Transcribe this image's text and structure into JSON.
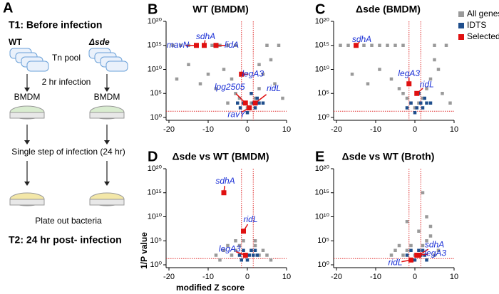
{
  "schematic": {
    "panel": "A",
    "t1": "T1: Before infection",
    "wt": "WT",
    "sde": "Δsde",
    "pool": "Tn pool",
    "infection": "2 hr infection",
    "host_left": "BMDM",
    "host_right": "BMDM",
    "single_step": "Single step of infection (24 hr)",
    "plate": "Plate out bacteria",
    "t2": "T2: 24 hr post- infection"
  },
  "chart_data": [
    {
      "type": "scatter",
      "panel": "B",
      "title": "WT (BMDM)",
      "xlim": [
        -20,
        10
      ],
      "xticks": [
        -20,
        -10,
        0,
        10
      ],
      "ylim": [
        1,
        1e+20
      ],
      "yticks": [
        {
          "value": 1,
          "label": "10⁰"
        },
        {
          "value": 100000,
          "label": "10⁵"
        },
        {
          "value": 10000000000,
          "label": "10¹⁰"
        },
        {
          "value": 1000000000000000.0,
          "label": "10¹⁵"
        },
        {
          "value": 1e+20,
          "label": "10²⁰"
        }
      ],
      "log_y": true,
      "thresholds": {
        "x": [
          -1.5,
          1.5
        ],
        "y": 20,
        "color": "#e03030"
      },
      "series": [
        {
          "color": "#9a9a9a",
          "x": [
            -19,
            -17,
            -15,
            -13,
            -9,
            -7,
            -5,
            -3,
            -18,
            -15,
            -12,
            -10,
            -8,
            -6,
            -4,
            -3,
            -2,
            -1,
            0,
            1,
            2,
            3,
            4,
            5,
            6,
            7,
            8,
            3,
            9,
            -5
          ],
          "values": [
            1000000000000000.0,
            1000000000000000.0,
            1000000000000000.0,
            1000000000000000.0,
            1000000000000000.0,
            1000000000000000.0,
            1000000000000000.0,
            1000000000000000.0,
            100000000.0,
            100000000000.0,
            10000000.0,
            1000000000.0,
            1000000.0,
            10000000000.0,
            100000000.0,
            100000,
            10000,
            1000,
            100,
            1000,
            10000,
            1000000,
            1000000000.0,
            1000000000000000.0,
            1000000000000.0,
            10000000,
            1000000000000000.0,
            100000000000.0,
            10000,
            1000
          ]
        },
        {
          "color": "#1f4e8c",
          "x": [
            -1.8,
            -1,
            0,
            0.5,
            1.5,
            2,
            2.5,
            3,
            -2.5,
            1,
            4
          ],
          "values": [
            100,
            1000,
            10,
            100,
            1000,
            100,
            10000,
            1000,
            1000,
            100000,
            1000
          ]
        },
        {
          "color": "#e01010",
          "x": [
            -11,
            -13,
            -8,
            -1.5,
            -0.5,
            0.5,
            2
          ],
          "values": [
            1000000000000000.0,
            1000000000000000.0,
            1000000000000000.0,
            1000000000.0,
            1000,
            100,
            1000
          ],
          "labels": [
            "sdhA",
            "mavN",
            "lidA",
            "legA3",
            "lpg2505",
            "ravY",
            "ridL"
          ]
        }
      ]
    },
    {
      "type": "scatter",
      "panel": "C",
      "title": "Δsde (BMDM)",
      "xlim": [
        -20,
        10
      ],
      "xticks": [
        -20,
        -10,
        0,
        10
      ],
      "ylim": [
        1,
        1e+20
      ],
      "yticks": [
        {
          "value": 1,
          "label": "10⁰"
        },
        {
          "value": 100000,
          "label": "10⁵"
        },
        {
          "value": 10000000000,
          "label": "10¹⁰"
        },
        {
          "value": 1000000000000000.0,
          "label": "10¹⁵"
        },
        {
          "value": 1e+20,
          "label": "10²⁰"
        }
      ],
      "log_y": true,
      "thresholds": {
        "x": [
          -1.5,
          1.5
        ],
        "y": 20,
        "color": "#e03030"
      },
      "legend": "top-right-outside",
      "series": [
        {
          "name": "All genes",
          "color": "#9a9a9a",
          "x": [
            -19,
            -17,
            -13,
            -11,
            -9,
            -7,
            -5,
            -3,
            -16,
            -12,
            -9,
            -6,
            -4,
            -3,
            -2,
            -1,
            0,
            1,
            2,
            3,
            4,
            5,
            6,
            7,
            8,
            9,
            5
          ],
          "values": [
            1000000000000000.0,
            1000000000000000.0,
            1000000000000000.0,
            1000000000000000.0,
            1000000000000000.0,
            1000000000000000.0,
            1000000000000000.0,
            1000000000000000.0,
            1000000000.0,
            10000000.0,
            10000000000.0,
            100000000.0,
            1000000.0,
            100000,
            10000,
            1000,
            100,
            1000,
            10000,
            1000000,
            100000000.0,
            1000000000000000.0,
            10000000000.0,
            100000,
            1000000000000000.0,
            1000,
            1000000000000.0
          ]
        },
        {
          "name": "IDTS",
          "color": "#1f4e8c",
          "x": [
            -2,
            -1,
            0,
            0.5,
            1.5,
            2,
            2.5,
            3,
            4,
            1
          ],
          "values": [
            100,
            1000,
            10,
            100,
            1000,
            100,
            10000,
            1000,
            1000,
            100000
          ]
        },
        {
          "name": "Selected IDTS",
          "color": "#e01010",
          "x": [
            -15,
            -1.5,
            0.5
          ],
          "values": [
            1000000000000000.0,
            10000000,
            100000
          ],
          "labels": [
            "sdhA",
            "legA3",
            "ridL"
          ]
        }
      ]
    },
    {
      "type": "scatter",
      "panel": "D",
      "title": "Δsde vs WT (BMDM)",
      "xlim": [
        -20,
        10
      ],
      "xticks": [
        -20,
        -10,
        0,
        10
      ],
      "ylim": [
        1,
        1e+20
      ],
      "yticks": [
        {
          "value": 1,
          "label": "10⁰"
        },
        {
          "value": 100000,
          "label": "10⁵"
        },
        {
          "value": 10000000000,
          "label": "10¹⁰"
        },
        {
          "value": 1000000000000000.0,
          "label": "10¹⁵"
        },
        {
          "value": 1e+20,
          "label": "10²⁰"
        }
      ],
      "log_y": true,
      "xlabel": "modified Z score",
      "ylabel": "1/P value",
      "thresholds": {
        "x": [
          -1.5,
          1.5
        ],
        "y": 20,
        "color": "#e03030"
      },
      "series": [
        {
          "color": "#9a9a9a",
          "x": [
            -8,
            -6,
            -5,
            -4,
            -3,
            -2,
            -1,
            0,
            1,
            2,
            3,
            4,
            5,
            -3,
            2,
            6,
            -7
          ],
          "values": [
            100,
            1000,
            10000,
            100,
            1000,
            10000,
            100000,
            100,
            1000,
            10000,
            100,
            1000,
            100,
            100000,
            100000,
            10,
            10
          ]
        },
        {
          "color": "#1f4e8c",
          "x": [
            -2,
            -1,
            0,
            0.5,
            1,
            1.5,
            2,
            2.5,
            -1.5
          ],
          "values": [
            100,
            1000,
            10,
            100,
            1000,
            100,
            1000,
            100,
            10
          ]
        },
        {
          "color": "#e01010",
          "x": [
            -6,
            -1,
            -0.5
          ],
          "values": [
            1000000000000000.0,
            10000000,
            100
          ],
          "labels": [
            "sdhA",
            "ridL",
            "legA3"
          ]
        }
      ]
    },
    {
      "type": "scatter",
      "panel": "E",
      "title": "Δsde vs WT (Broth)",
      "xlim": [
        -20,
        10
      ],
      "xticks": [
        -20,
        -10,
        0,
        10
      ],
      "ylim": [
        1,
        1e+20
      ],
      "yticks": [
        {
          "value": 1,
          "label": "10⁰"
        },
        {
          "value": 100000,
          "label": "10⁵"
        },
        {
          "value": 10000000000,
          "label": "10¹⁰"
        },
        {
          "value": 1000000000000000.0,
          "label": "10¹⁵"
        },
        {
          "value": 1e+20,
          "label": "10²⁰"
        }
      ],
      "log_y": true,
      "thresholds": {
        "x": [
          -1.5,
          1.5
        ],
        "y": 20,
        "color": "#e03030"
      },
      "series": [
        {
          "color": "#9a9a9a",
          "x": [
            -6,
            -5,
            -4,
            -3,
            -2,
            -1,
            0,
            1,
            2,
            3,
            4,
            5,
            2,
            3,
            6,
            -2,
            1,
            4
          ],
          "values": [
            100,
            1000,
            10000,
            100,
            1000,
            10000,
            100,
            1000,
            10000,
            100000,
            1000000,
            100,
            1000000000000000.0,
            10000000000.0,
            1000,
            1000000000.0,
            10000000,
            100000000
          ]
        },
        {
          "color": "#1f4e8c",
          "x": [
            -2,
            -1,
            0,
            0.5,
            1,
            1.5,
            2,
            2.5,
            3
          ],
          "values": [
            100,
            1000,
            10,
            100,
            1000,
            100,
            1000,
            100,
            10
          ]
        },
        {
          "color": "#e01010",
          "x": [
            -1,
            1,
            0.5
          ],
          "values": [
            10,
            100,
            100
          ],
          "labels": [
            "ridL",
            "sdhA",
            "legA3"
          ]
        }
      ]
    }
  ]
}
